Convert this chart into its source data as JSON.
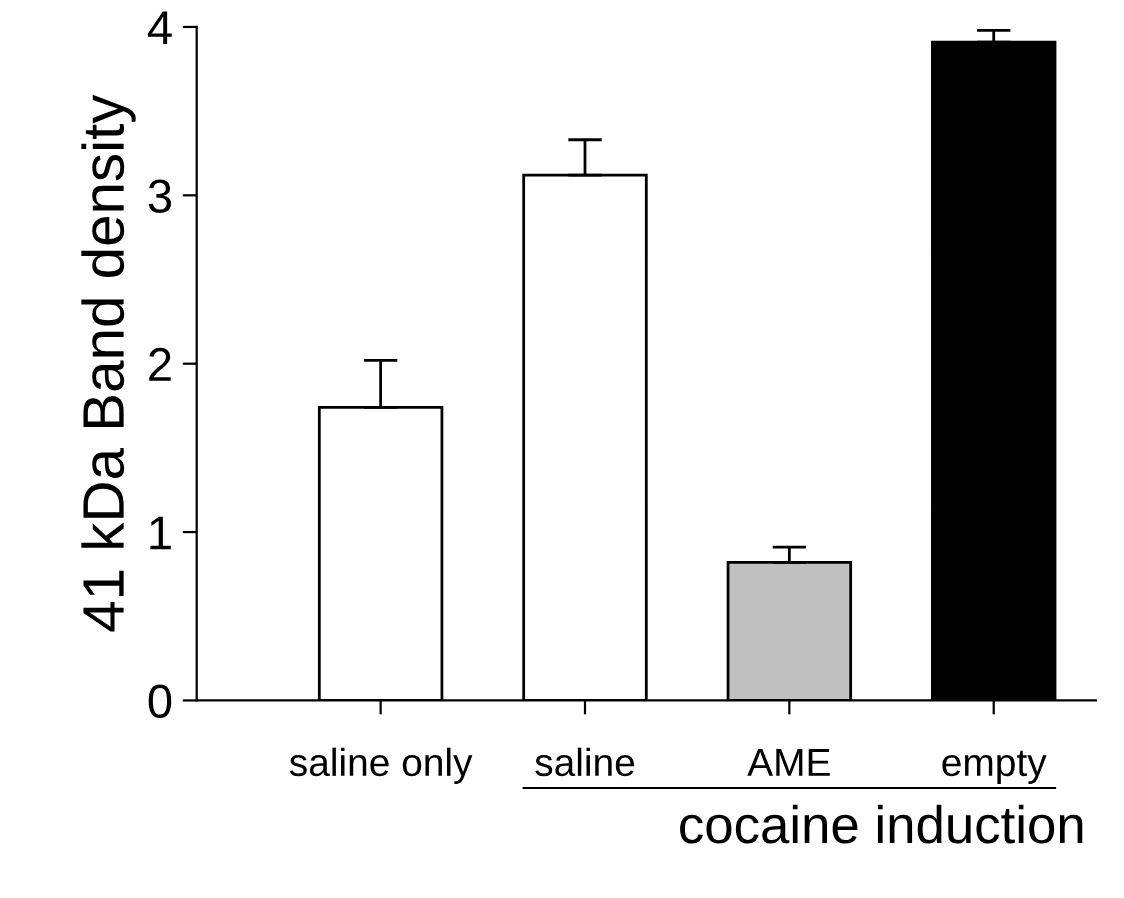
{
  "chart_data": {
    "type": "bar",
    "ylabel": "41 kDa Band density",
    "categories": [
      "saline only",
      "saline",
      "AME",
      "empty"
    ],
    "values": [
      1.74,
      3.12,
      0.82,
      3.91
    ],
    "errors": [
      0.28,
      0.21,
      0.09,
      0.07
    ],
    "colors": [
      "#ffffff",
      "#ffffff",
      "#c0c0c0",
      "#000000"
    ],
    "ylim": [
      0,
      4
    ],
    "yticks": [
      0,
      1,
      2,
      3,
      4
    ],
    "grid": false,
    "legend": false,
    "annotations": [
      "cocaine induction"
    ]
  }
}
